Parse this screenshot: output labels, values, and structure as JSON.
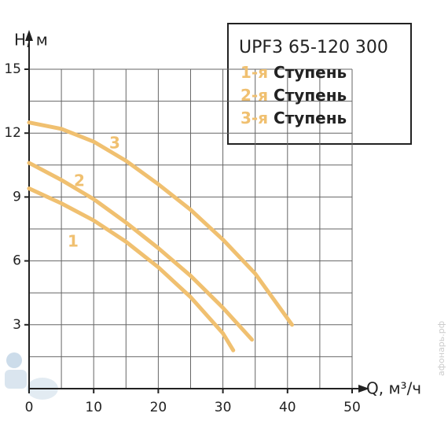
{
  "chart_data": {
    "type": "line",
    "title": "UPF3 65-120 300",
    "x_label": "Q, м³/ч",
    "y_label": "H, м",
    "watermark": "афонарь.рф",
    "xlim": [
      0,
      50
    ],
    "xticks": [
      0,
      10,
      20,
      30,
      40,
      50
    ],
    "ylim": [
      0,
      15
    ],
    "yticks": [
      3,
      6,
      9,
      12,
      15
    ],
    "x_zero_label": "0",
    "grid": true,
    "minor_grid": true,
    "series": [
      {
        "name": "1-я Ступень",
        "curve_label": "1",
        "color": "#f0c070",
        "x": [
          0,
          5,
          10,
          15,
          20,
          25,
          30,
          31.6
        ],
        "values": [
          9.4,
          8.7,
          7.9,
          6.9,
          5.7,
          4.3,
          2.6,
          1.8
        ]
      },
      {
        "name": "2-я Ступень",
        "curve_label": "2",
        "color": "#f0c070",
        "x": [
          0,
          5,
          10,
          15,
          20,
          25,
          30,
          34.5
        ],
        "values": [
          10.6,
          9.8,
          8.9,
          7.8,
          6.6,
          5.3,
          3.8,
          2.3
        ]
      },
      {
        "name": "3-я Ступень",
        "curve_label": "3",
        "color": "#f0c070",
        "x": [
          0,
          5,
          10,
          15,
          20,
          25,
          30,
          35,
          40.7
        ],
        "values": [
          12.5,
          12.2,
          11.6,
          10.7,
          9.6,
          8.4,
          7.0,
          5.4,
          3.0
        ]
      }
    ]
  }
}
